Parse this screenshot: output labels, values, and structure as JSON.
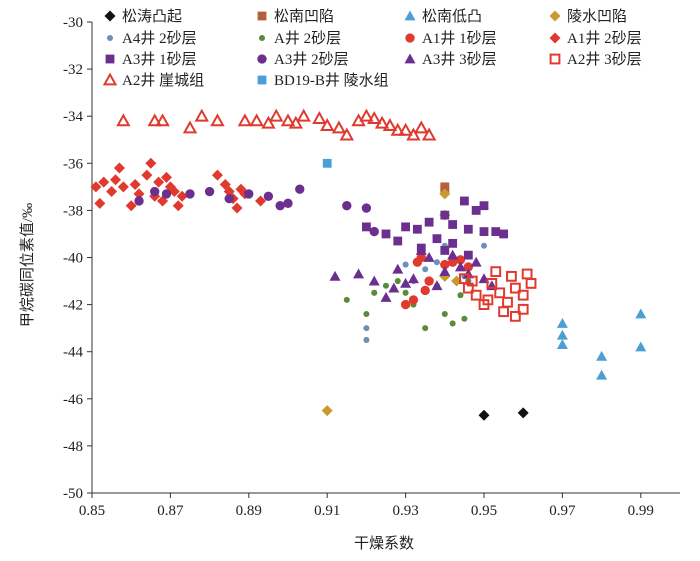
{
  "chart_data": {
    "type": "scatter",
    "xlabel": "干燥系数",
    "ylabel": "甲烷碳同位素值/‰",
    "xlim": [
      0.85,
      1.0
    ],
    "ylim": [
      -50,
      -30
    ],
    "x_ticks": [
      0.85,
      0.87,
      0.89,
      0.91,
      0.93,
      0.95,
      0.97,
      0.99
    ],
    "x_tick_labels": [
      "0.85",
      "0.87",
      "0.89",
      "0.91",
      "0.93",
      "0.95",
      "0.97",
      "0.99"
    ],
    "y_ticks": [
      -50,
      -48,
      -46,
      -44,
      -42,
      -40,
      -38,
      -36,
      -34,
      -32,
      -30
    ],
    "y_tick_labels": [
      "-50",
      "-48",
      "-46",
      "-44",
      "-42",
      "-40",
      "-38",
      "-36",
      "-34",
      "-32",
      "-30"
    ],
    "grid": false,
    "legend_position": "top",
    "series": [
      {
        "name": "松涛凸起",
        "marker": "diamond",
        "color": "#111111",
        "points": [
          [
            0.95,
            -46.7
          ],
          [
            0.96,
            -46.6
          ]
        ]
      },
      {
        "name": "松南凹陷",
        "marker": "square",
        "color": "#b5603a",
        "points": [
          [
            0.94,
            -37.0
          ],
          [
            0.94,
            -37.1
          ]
        ]
      },
      {
        "name": "松南低凸",
        "marker": "triangle",
        "color": "#4a9fd4",
        "points": [
          [
            0.97,
            -42.8
          ],
          [
            0.97,
            -43.3
          ],
          [
            0.97,
            -43.7
          ],
          [
            0.98,
            -44.2
          ],
          [
            0.98,
            -45.0
          ],
          [
            0.99,
            -42.4
          ],
          [
            0.99,
            -43.8
          ]
        ]
      },
      {
        "name": "陵水凹陷",
        "marker": "diamond",
        "color": "#c99a2e",
        "points": [
          [
            0.91,
            -46.5
          ],
          [
            0.94,
            -37.3
          ],
          [
            0.94,
            -38.2
          ],
          [
            0.94,
            -40.8
          ],
          [
            0.943,
            -41.0
          ]
        ]
      },
      {
        "name": "A4井 2砂层",
        "marker": "circle-small",
        "color": "#6e8fb8",
        "points": [
          [
            0.92,
            -43.0
          ],
          [
            0.92,
            -43.5
          ],
          [
            0.93,
            -40.3
          ],
          [
            0.932,
            -41.0
          ],
          [
            0.94,
            -39.5
          ],
          [
            0.95,
            -39.5
          ],
          [
            0.938,
            -40.2
          ],
          [
            0.945,
            -40.8
          ],
          [
            0.935,
            -40.5
          ]
        ]
      },
      {
        "name": "A井 2砂层",
        "marker": "circle-small",
        "color": "#5a8a3a",
        "points": [
          [
            0.915,
            -41.8
          ],
          [
            0.92,
            -42.4
          ],
          [
            0.922,
            -41.5
          ],
          [
            0.925,
            -41.2
          ],
          [
            0.928,
            -41.0
          ],
          [
            0.93,
            -41.5
          ],
          [
            0.932,
            -42.0
          ],
          [
            0.935,
            -43.0
          ],
          [
            0.938,
            -41.2
          ],
          [
            0.94,
            -42.4
          ],
          [
            0.942,
            -42.8
          ],
          [
            0.945,
            -42.6
          ],
          [
            0.946,
            -41.0
          ],
          [
            0.944,
            -41.6
          ]
        ]
      },
      {
        "name": "A1井 1砂层",
        "marker": "circle",
        "color": "#e03a2e",
        "points": [
          [
            0.93,
            -42.0
          ],
          [
            0.932,
            -41.8
          ],
          [
            0.933,
            -40.2
          ],
          [
            0.934,
            -40.0
          ],
          [
            0.935,
            -41.4
          ],
          [
            0.94,
            -40.3
          ],
          [
            0.942,
            -40.2
          ],
          [
            0.944,
            -40.1
          ],
          [
            0.946,
            -40.4
          ],
          [
            0.936,
            -41.0
          ]
        ]
      },
      {
        "name": "A1井 2砂层",
        "marker": "diamond",
        "color": "#e03a2e",
        "points": [
          [
            0.851,
            -37.0
          ],
          [
            0.852,
            -37.7
          ],
          [
            0.853,
            -36.8
          ],
          [
            0.855,
            -37.2
          ],
          [
            0.856,
            -36.7
          ],
          [
            0.857,
            -36.2
          ],
          [
            0.858,
            -37.0
          ],
          [
            0.86,
            -37.8
          ],
          [
            0.861,
            -36.9
          ],
          [
            0.862,
            -37.3
          ],
          [
            0.864,
            -36.5
          ],
          [
            0.865,
            -36.0
          ],
          [
            0.866,
            -37.4
          ],
          [
            0.867,
            -36.8
          ],
          [
            0.868,
            -37.6
          ],
          [
            0.869,
            -36.6
          ],
          [
            0.87,
            -37.0
          ],
          [
            0.871,
            -37.2
          ],
          [
            0.872,
            -37.8
          ],
          [
            0.873,
            -37.4
          ],
          [
            0.882,
            -36.5
          ],
          [
            0.884,
            -36.9
          ],
          [
            0.885,
            -37.2
          ],
          [
            0.886,
            -37.5
          ],
          [
            0.887,
            -37.9
          ],
          [
            0.888,
            -37.1
          ],
          [
            0.889,
            -37.3
          ],
          [
            0.893,
            -37.6
          ]
        ]
      },
      {
        "name": "A3井 1砂层",
        "marker": "square",
        "color": "#6a2f8f",
        "points": [
          [
            0.925,
            -39.0
          ],
          [
            0.93,
            -38.7
          ],
          [
            0.933,
            -38.8
          ],
          [
            0.936,
            -38.5
          ],
          [
            0.94,
            -38.2
          ],
          [
            0.942,
            -38.6
          ],
          [
            0.945,
            -37.6
          ],
          [
            0.948,
            -38.0
          ],
          [
            0.95,
            -37.8
          ],
          [
            0.953,
            -38.9
          ],
          [
            0.955,
            -39.0
          ],
          [
            0.946,
            -38.8
          ],
          [
            0.934,
            -39.6
          ],
          [
            0.942,
            -39.4
          ],
          [
            0.94,
            -39.7
          ],
          [
            0.946,
            -39.9
          ],
          [
            0.938,
            -39.2
          ],
          [
            0.92,
            -38.7
          ],
          [
            0.928,
            -39.3
          ],
          [
            0.95,
            -38.9
          ]
        ]
      },
      {
        "name": "A3井 2砂层",
        "marker": "circle",
        "color": "#6a2f8f",
        "points": [
          [
            0.862,
            -37.6
          ],
          [
            0.866,
            -37.2
          ],
          [
            0.869,
            -37.3
          ],
          [
            0.875,
            -37.3
          ],
          [
            0.88,
            -37.2
          ],
          [
            0.885,
            -37.5
          ],
          [
            0.89,
            -37.3
          ],
          [
            0.895,
            -37.4
          ],
          [
            0.898,
            -37.8
          ],
          [
            0.9,
            -37.7
          ],
          [
            0.903,
            -37.1
          ],
          [
            0.915,
            -37.8
          ],
          [
            0.92,
            -37.9
          ],
          [
            0.922,
            -38.9
          ]
        ]
      },
      {
        "name": "A3井 3砂层",
        "marker": "triangle",
        "color": "#6a2f8f",
        "points": [
          [
            0.912,
            -40.8
          ],
          [
            0.918,
            -40.7
          ],
          [
            0.922,
            -41.0
          ],
          [
            0.925,
            -41.7
          ],
          [
            0.927,
            -41.3
          ],
          [
            0.928,
            -40.5
          ],
          [
            0.93,
            -41.1
          ],
          [
            0.932,
            -40.9
          ],
          [
            0.934,
            -39.7
          ],
          [
            0.936,
            -40.0
          ],
          [
            0.938,
            -41.2
          ],
          [
            0.94,
            -40.6
          ],
          [
            0.942,
            -39.9
          ],
          [
            0.944,
            -40.4
          ],
          [
            0.946,
            -40.7
          ],
          [
            0.948,
            -40.2
          ],
          [
            0.95,
            -40.9
          ],
          [
            0.952,
            -41.2
          ]
        ]
      },
      {
        "name": "A2井 3砂层",
        "marker": "square-open",
        "color": "#e03a2e",
        "points": [
          [
            0.945,
            -40.9
          ],
          [
            0.946,
            -41.3
          ],
          [
            0.948,
            -41.6
          ],
          [
            0.95,
            -42.0
          ],
          [
            0.952,
            -41.1
          ],
          [
            0.953,
            -40.6
          ],
          [
            0.954,
            -41.5
          ],
          [
            0.955,
            -42.3
          ],
          [
            0.956,
            -41.9
          ],
          [
            0.957,
            -40.8
          ],
          [
            0.958,
            -41.3
          ],
          [
            0.96,
            -41.6
          ],
          [
            0.96,
            -42.2
          ],
          [
            0.961,
            -40.7
          ],
          [
            0.962,
            -41.1
          ],
          [
            0.958,
            -42.5
          ],
          [
            0.951,
            -41.8
          ],
          [
            0.947,
            -41.0
          ]
        ]
      },
      {
        "name": "A2井 崖城组",
        "marker": "triangle-open",
        "color": "#e03a2e",
        "points": [
          [
            0.858,
            -34.2
          ],
          [
            0.866,
            -34.2
          ],
          [
            0.868,
            -34.2
          ],
          [
            0.875,
            -34.5
          ],
          [
            0.878,
            -34.0
          ],
          [
            0.882,
            -34.2
          ],
          [
            0.889,
            -34.2
          ],
          [
            0.892,
            -34.2
          ],
          [
            0.895,
            -34.3
          ],
          [
            0.897,
            -34.0
          ],
          [
            0.9,
            -34.2
          ],
          [
            0.902,
            -34.3
          ],
          [
            0.904,
            -34.0
          ],
          [
            0.908,
            -34.1
          ],
          [
            0.91,
            -34.4
          ],
          [
            0.913,
            -34.5
          ],
          [
            0.915,
            -34.8
          ],
          [
            0.918,
            -34.2
          ],
          [
            0.92,
            -34.0
          ],
          [
            0.922,
            -34.1
          ],
          [
            0.924,
            -34.3
          ],
          [
            0.926,
            -34.4
          ],
          [
            0.928,
            -34.6
          ],
          [
            0.93,
            -34.6
          ],
          [
            0.932,
            -34.8
          ],
          [
            0.934,
            -34.5
          ],
          [
            0.936,
            -34.8
          ]
        ]
      },
      {
        "name": "BD19-B井 陵水组",
        "marker": "square",
        "color": "#4a9fd4",
        "points": [
          [
            0.91,
            -36.0
          ]
        ]
      }
    ]
  }
}
